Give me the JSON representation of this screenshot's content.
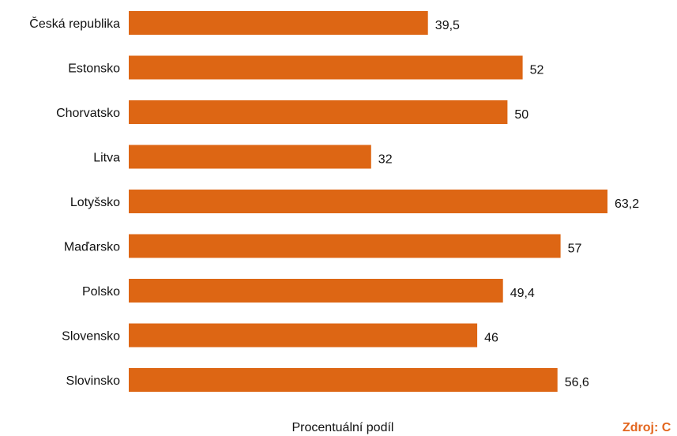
{
  "chart_data": {
    "type": "bar",
    "orientation": "horizontal",
    "categories": [
      "Česká republika",
      "Estonsko",
      "Chorvatsko",
      "Litva",
      "Lotyšsko",
      "Maďarsko",
      "Polsko",
      "Slovensko",
      "Slovinsko"
    ],
    "values": [
      39.5,
      52,
      50,
      32,
      63.2,
      57,
      49.4,
      46,
      56.6
    ],
    "value_labels": [
      "39,5",
      "52",
      "50",
      "32",
      "63,2",
      "57",
      "49,4",
      "46",
      "56,6"
    ],
    "xlabel": "Procentuální podíl",
    "xlim": [
      0,
      63.2
    ],
    "grid": false,
    "bar_color": "#dd6614"
  },
  "source": {
    "text": "Zdroj: C",
    "color": "#e3661e"
  }
}
